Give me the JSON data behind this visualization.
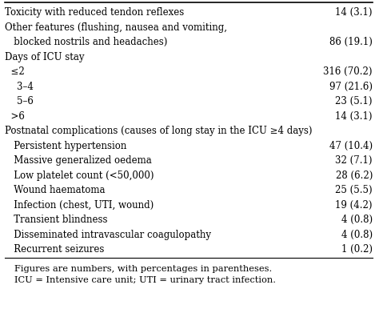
{
  "rows": [
    {
      "label": "Toxicity with reduced tendon reflexes",
      "value": "14 (3.1)",
      "indent": 0
    },
    {
      "label": "Other features (flushing, nausea and vomiting,",
      "value": "",
      "indent": 0
    },
    {
      "label": "   blocked nostrils and headaches)",
      "value": "86 (19.1)",
      "indent": 0
    },
    {
      "label": "Days of ICU stay",
      "value": "",
      "indent": 0
    },
    {
      "label": "  ≤2",
      "value": "316 (70.2)",
      "indent": 1
    },
    {
      "label": "    3–4",
      "value": "97 (21.6)",
      "indent": 2
    },
    {
      "label": "    5–6",
      "value": "23 (5.1)",
      "indent": 2
    },
    {
      "label": "  >6",
      "value": "14 (3.1)",
      "indent": 1
    },
    {
      "label": "Postnatal complications (causes of long stay in the ICU ≥4 days)",
      "value": "",
      "indent": 0
    },
    {
      "label": "   Persistent hypertension",
      "value": "47 (10.4)",
      "indent": 1
    },
    {
      "label": "   Massive generalized oedema",
      "value": "32 (7.1)",
      "indent": 1
    },
    {
      "label": "   Low platelet count (<50,000)",
      "value": "28 (6.2)",
      "indent": 1
    },
    {
      "label": "   Wound haematoma",
      "value": "25 (5.5)",
      "indent": 1
    },
    {
      "label": "   Infection (chest, UTI, wound)",
      "value": "19 (4.2)",
      "indent": 1
    },
    {
      "label": "   Transient blindness",
      "value": "4 (0.8)",
      "indent": 1
    },
    {
      "label": "   Disseminated intravascular coagulopathy",
      "value": "4 (0.8)",
      "indent": 1
    },
    {
      "label": "   Recurrent seizures",
      "value": "1 (0.2)",
      "indent": 1
    }
  ],
  "footnote1": "Figures are numbers, with percentages in parentheses.",
  "footnote2": "ICU = Intensive care unit; UTI = urinary tract infection.",
  "bg_color": "#ffffff",
  "text_color": "#000000",
  "font_size": 8.5,
  "footnote_font_size": 8.2
}
